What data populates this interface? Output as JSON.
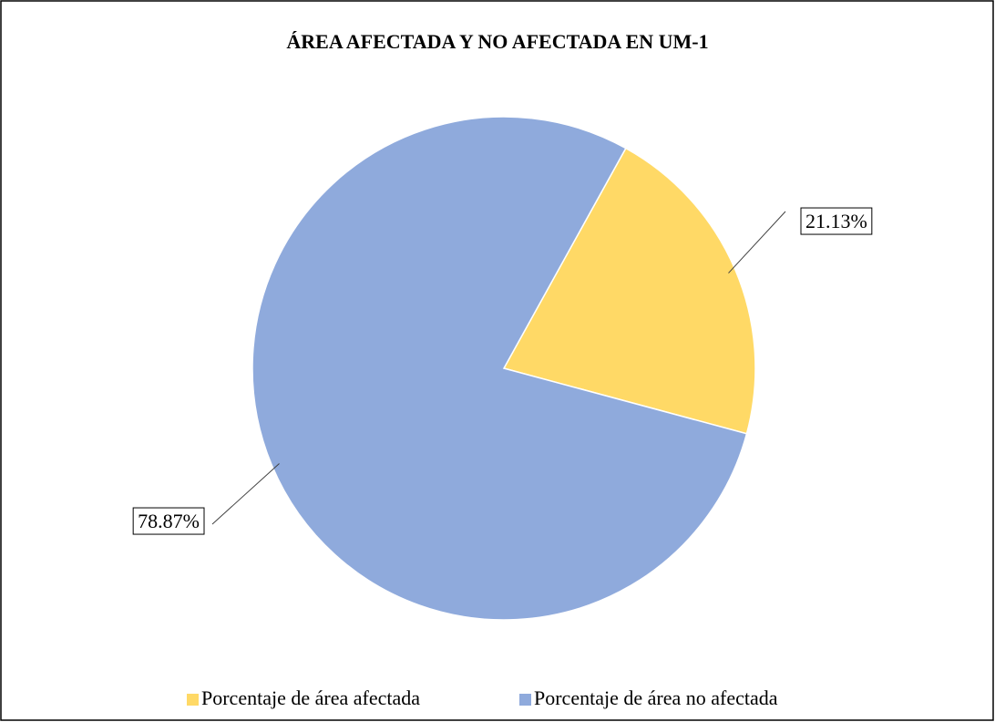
{
  "chart_data": {
    "type": "pie",
    "title": "ÁREA AFECTADA Y NO AFECTADA EN UM-1",
    "categories": [
      "Porcentaje de área afectada",
      "Porcentaje de área no afectada"
    ],
    "values": [
      21.13,
      78.87
    ],
    "value_labels": [
      "21.13%",
      "78.87%"
    ],
    "colors": [
      "#ffd966",
      "#8faadc"
    ],
    "legend": "bottom"
  }
}
